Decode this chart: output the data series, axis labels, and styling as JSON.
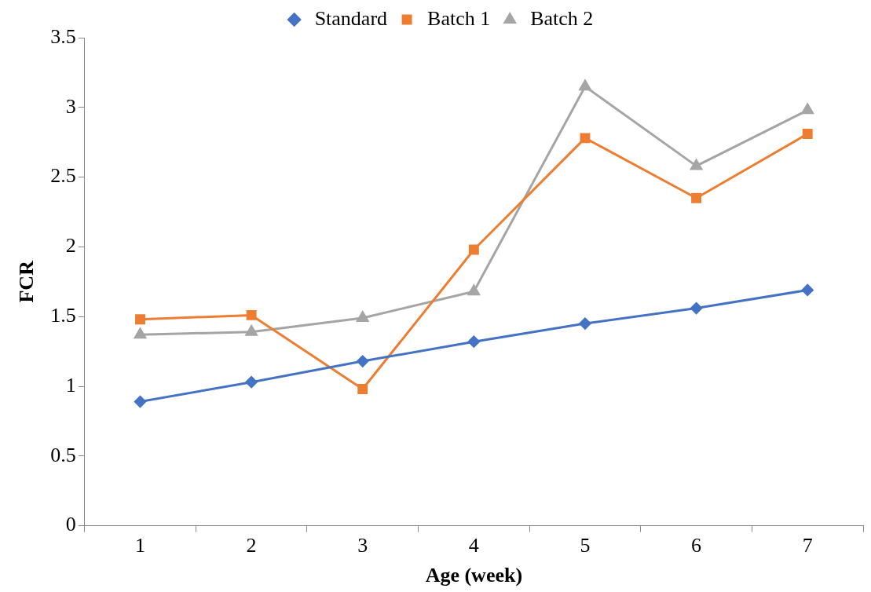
{
  "chart_data": {
    "type": "line",
    "xlabel": "Age (week)",
    "ylabel": "FCR",
    "categories": [
      "1",
      "2",
      "3",
      "4",
      "5",
      "6",
      "7"
    ],
    "series": [
      {
        "name": "Standard",
        "color": "#4472c4",
        "marker": "diamond",
        "values": [
          0.89,
          1.03,
          1.18,
          1.32,
          1.45,
          1.56,
          1.69
        ]
      },
      {
        "name": "Batch 1",
        "color": "#ed7d31",
        "marker": "square",
        "values": [
          1.48,
          1.51,
          0.98,
          1.98,
          2.78,
          2.35,
          2.81
        ]
      },
      {
        "name": "Batch 2",
        "color": "#a5a5a5",
        "marker": "triangle",
        "values": [
          1.37,
          1.39,
          1.49,
          1.68,
          3.15,
          2.58,
          2.98
        ]
      }
    ],
    "ylim": [
      0,
      3.5
    ],
    "yticks": [
      0,
      0.5,
      1,
      1.5,
      2,
      2.5,
      3,
      3.5
    ],
    "grid": false,
    "legend": "top",
    "line_style": "solid"
  }
}
